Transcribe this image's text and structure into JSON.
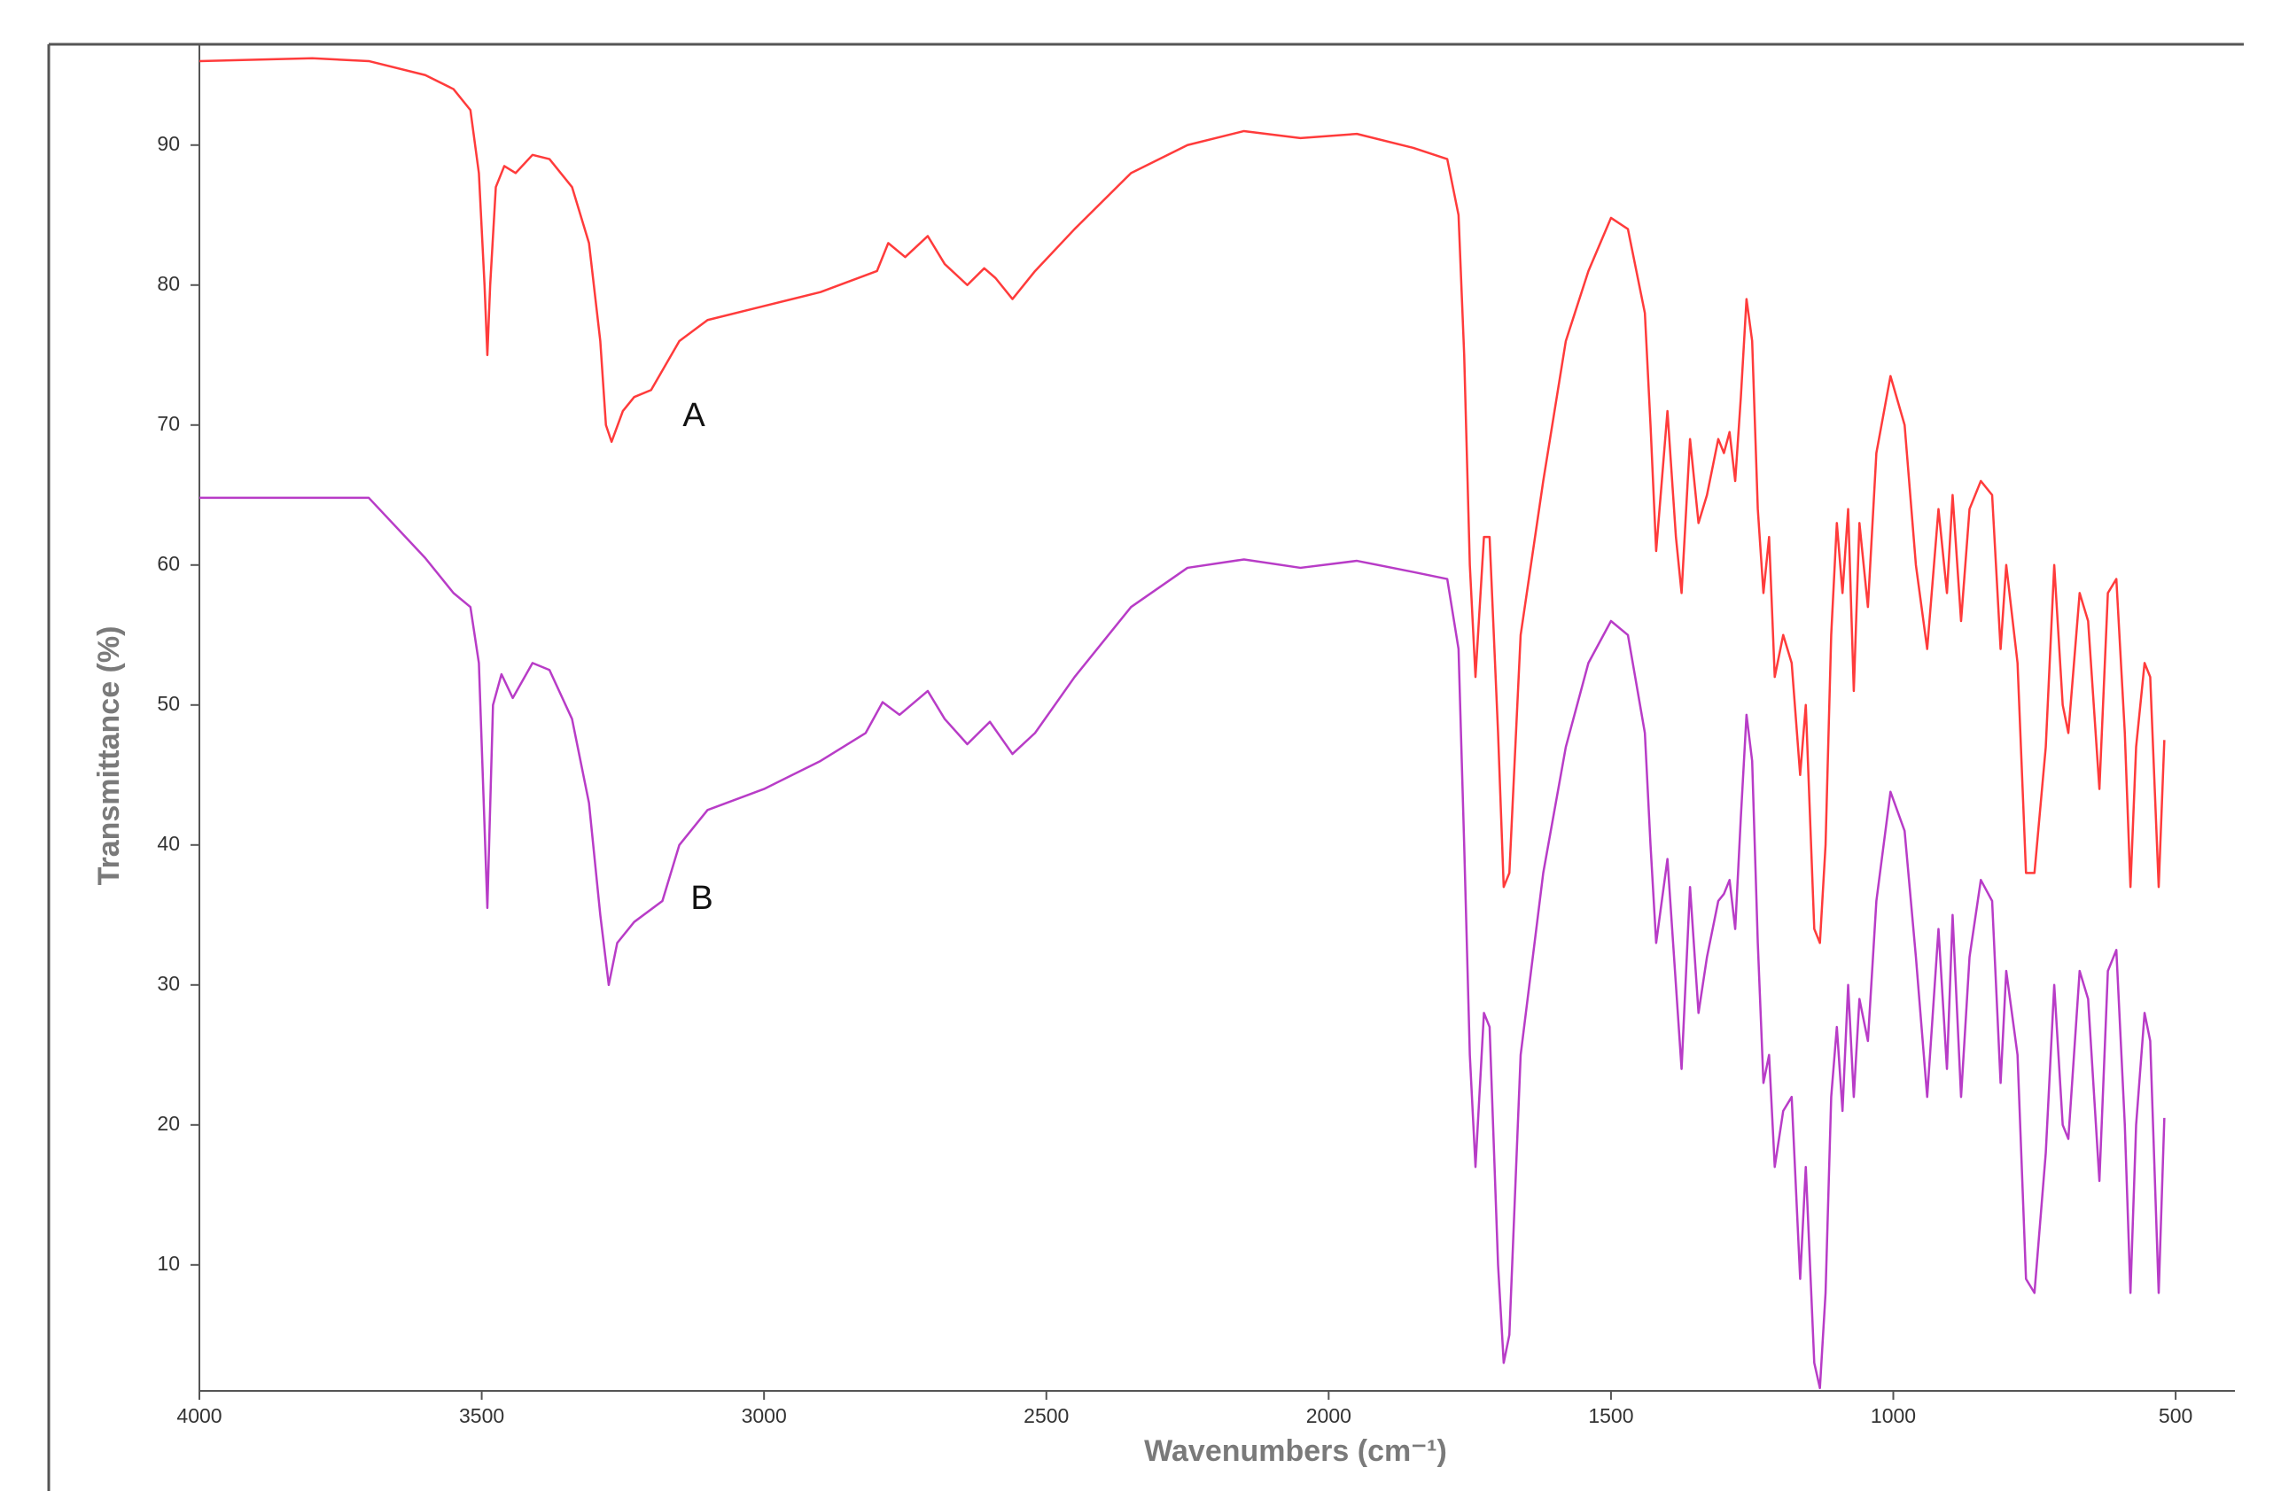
{
  "chart_data": {
    "type": "line",
    "x_label": "Wavenumbers (cm⁻¹)",
    "y_label": "Transmittance (%)",
    "xlim": [
      4000,
      395
    ],
    "ylim": [
      1,
      97.2
    ],
    "xticks": [
      4000,
      3500,
      3000,
      2500,
      2000,
      1500,
      1000,
      500
    ],
    "yticks": [
      10,
      20,
      30,
      40,
      50,
      60,
      70,
      80,
      90
    ],
    "grid": false,
    "series": [
      {
        "name": "A",
        "color": "#ff3b3b",
        "x": [
          4000,
          3800,
          3700,
          3600,
          3550,
          3520,
          3505,
          3495,
          3490,
          3485,
          3475,
          3460,
          3440,
          3410,
          3380,
          3340,
          3310,
          3290,
          3280,
          3270,
          3250,
          3230,
          3200,
          3150,
          3100,
          3000,
          2900,
          2800,
          2780,
          2750,
          2710,
          2680,
          2640,
          2610,
          2590,
          2560,
          2520,
          2450,
          2350,
          2250,
          2150,
          2050,
          1950,
          1850,
          1790,
          1770,
          1760,
          1750,
          1740,
          1725,
          1715,
          1700,
          1690,
          1680,
          1660,
          1620,
          1580,
          1540,
          1500,
          1470,
          1440,
          1430,
          1420,
          1410,
          1400,
          1385,
          1375,
          1360,
          1345,
          1330,
          1310,
          1300,
          1290,
          1280,
          1270,
          1260,
          1250,
          1240,
          1230,
          1220,
          1210,
          1195,
          1180,
          1165,
          1155,
          1140,
          1130,
          1120,
          1110,
          1100,
          1090,
          1080,
          1070,
          1060,
          1045,
          1030,
          1005,
          980,
          960,
          940,
          920,
          905,
          895,
          880,
          865,
          845,
          825,
          810,
          800,
          780,
          765,
          750,
          730,
          715,
          700,
          690,
          670,
          655,
          635,
          620,
          605,
          590,
          580,
          570,
          555,
          545,
          530,
          520
        ],
        "values": [
          96,
          96.2,
          96,
          95,
          94,
          92.5,
          88,
          80,
          75,
          80,
          87,
          88.5,
          88,
          89.3,
          89,
          87,
          83,
          76,
          70,
          68.8,
          71,
          72,
          72.5,
          76,
          77.5,
          78.5,
          79.5,
          81,
          83,
          82,
          83.5,
          81.5,
          80,
          81.2,
          80.5,
          79,
          81,
          84,
          88,
          90,
          91,
          90.5,
          90.8,
          89.8,
          89,
          85,
          75,
          60,
          52,
          62,
          62,
          48,
          37,
          38,
          55,
          66,
          76,
          81,
          84.8,
          84,
          78,
          70,
          61,
          66,
          71,
          62,
          58,
          69,
          63,
          65,
          69,
          68,
          69.5,
          66,
          72,
          79,
          76,
          64,
          58,
          62,
          52,
          55,
          53,
          45,
          50,
          34,
          33,
          40,
          55,
          63,
          58,
          64,
          51,
          63,
          57,
          68,
          73.5,
          70,
          60,
          54,
          64,
          58,
          65,
          56,
          64,
          66,
          65,
          54,
          60,
          53,
          38,
          38,
          47,
          60,
          50,
          48,
          58,
          56,
          44,
          58,
          59,
          48,
          37,
          47,
          53,
          52,
          37,
          47.5
        ]
      },
      {
        "name": "B",
        "color": "#b83cc7",
        "x": [
          4000,
          3800,
          3700,
          3600,
          3550,
          3520,
          3505,
          3490,
          3480,
          3465,
          3445,
          3410,
          3380,
          3340,
          3310,
          3290,
          3275,
          3260,
          3230,
          3180,
          3150,
          3100,
          3000,
          2900,
          2820,
          2790,
          2760,
          2710,
          2680,
          2640,
          2600,
          2560,
          2520,
          2450,
          2350,
          2250,
          2150,
          2050,
          1950,
          1850,
          1790,
          1770,
          1760,
          1750,
          1740,
          1725,
          1715,
          1700,
          1690,
          1680,
          1660,
          1620,
          1580,
          1540,
          1500,
          1470,
          1440,
          1430,
          1420,
          1410,
          1400,
          1385,
          1375,
          1360,
          1345,
          1330,
          1310,
          1300,
          1290,
          1280,
          1270,
          1260,
          1250,
          1240,
          1230,
          1220,
          1210,
          1195,
          1180,
          1165,
          1155,
          1140,
          1130,
          1120,
          1110,
          1100,
          1090,
          1080,
          1070,
          1060,
          1045,
          1030,
          1005,
          980,
          960,
          940,
          920,
          905,
          895,
          880,
          865,
          845,
          825,
          810,
          800,
          780,
          765,
          750,
          730,
          715,
          700,
          690,
          670,
          655,
          635,
          620,
          605,
          590,
          580,
          570,
          555,
          545,
          530,
          520
        ],
        "values": [
          64.8,
          64.8,
          64.8,
          60.5,
          58,
          57,
          53,
          35.5,
          50,
          52.2,
          50.5,
          53,
          52.5,
          49,
          43,
          35,
          30,
          33,
          34.5,
          36,
          40,
          42.5,
          44,
          46,
          48,
          50.2,
          49.3,
          51,
          49,
          47.2,
          48.8,
          46.5,
          48,
          52,
          57,
          59.8,
          60.4,
          59.8,
          60.3,
          59.5,
          59,
          54,
          40,
          25,
          17,
          28,
          27,
          10,
          3,
          5,
          25,
          38,
          47,
          53,
          56,
          55,
          48,
          40,
          33,
          36,
          39,
          30,
          24,
          37,
          28,
          32,
          36,
          36.5,
          37.5,
          34,
          42,
          49.3,
          46,
          33,
          23,
          25,
          17,
          21,
          22,
          9,
          17,
          3,
          1.2,
          8,
          22,
          27,
          21,
          30,
          22,
          29,
          26,
          36,
          43.8,
          41,
          32,
          22,
          34,
          24,
          35,
          22,
          32,
          37.5,
          36,
          23,
          31,
          25,
          9,
          8,
          18,
          30,
          20,
          19,
          31,
          29,
          16,
          31,
          32.5,
          20,
          8,
          20,
          28,
          26,
          8,
          20.5
        ]
      }
    ]
  }
}
